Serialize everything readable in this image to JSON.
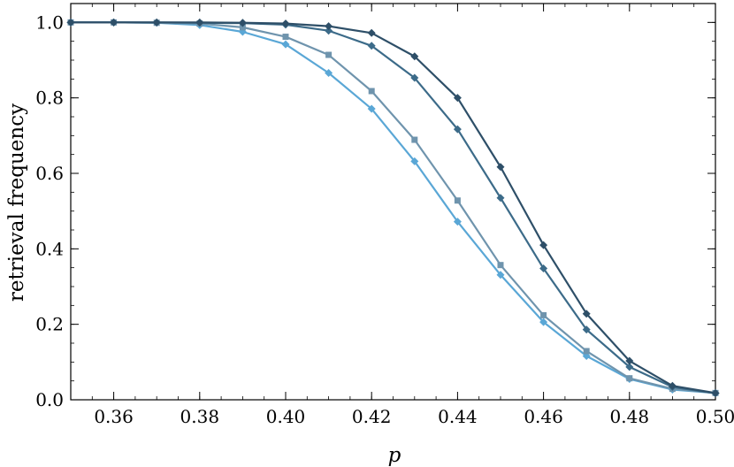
{
  "chart_data": {
    "type": "line",
    "xlabel": "p",
    "ylabel": "retrieval frequency",
    "xlim": [
      0.35,
      0.5
    ],
    "ylim": [
      0.0,
      1.05
    ],
    "grid": false,
    "legend": "none",
    "x_ticks": [
      "0.36",
      "0.38",
      "0.40",
      "0.42",
      "0.44",
      "0.46",
      "0.48",
      "0.50"
    ],
    "y_ticks": [
      "0.0",
      "0.2",
      "0.4",
      "0.6",
      "0.8",
      "1.0"
    ],
    "x": [
      0.35,
      0.36,
      0.37,
      0.38,
      0.39,
      0.4,
      0.41,
      0.42,
      0.43,
      0.44,
      0.45,
      0.46,
      0.47,
      0.48,
      0.49,
      0.5
    ],
    "series": [
      {
        "color": "#2e4f68",
        "marker": "diamond",
        "values": [
          1.0,
          1.0,
          1.0,
          1.0,
          0.999,
          0.997,
          0.99,
          0.972,
          0.91,
          0.8,
          0.617,
          0.41,
          0.228,
          0.103,
          0.037,
          0.018
        ]
      },
      {
        "color": "#3c6b89",
        "marker": "diamond",
        "values": [
          1.0,
          1.0,
          1.0,
          0.999,
          0.998,
          0.994,
          0.978,
          0.938,
          0.853,
          0.717,
          0.535,
          0.348,
          0.186,
          0.087,
          0.034,
          0.017
        ]
      },
      {
        "color": "#6f94ad",
        "marker": "square",
        "values": [
          1.0,
          1.0,
          0.999,
          0.997,
          0.987,
          0.962,
          0.914,
          0.818,
          0.689,
          0.528,
          0.357,
          0.224,
          0.129,
          0.057,
          0.029,
          0.018
        ]
      },
      {
        "color": "#5aa7d6",
        "marker": "diamond",
        "values": [
          1.0,
          1.0,
          0.999,
          0.993,
          0.975,
          0.942,
          0.866,
          0.771,
          0.632,
          0.472,
          0.331,
          0.206,
          0.116,
          0.055,
          0.027,
          0.018
        ]
      }
    ]
  }
}
